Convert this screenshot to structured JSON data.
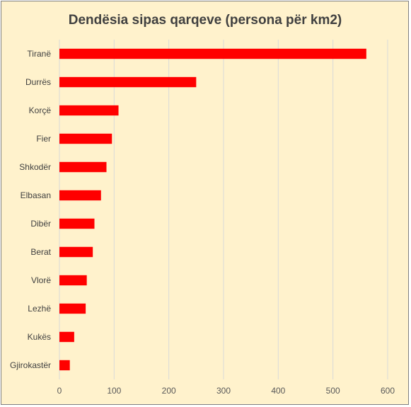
{
  "chart_data": {
    "type": "bar",
    "orientation": "horizontal",
    "title": "Dendësia sipas qarqeve (persona për km2)",
    "xlabel": "",
    "ylabel": "",
    "categories": [
      "Tiranë",
      "Durrës",
      "Korçë",
      "Fier",
      "Shkodër",
      "Elbasan",
      "Dibër",
      "Berat",
      "Vlorë",
      "Lezhë",
      "Kukës",
      "Gjirokastër"
    ],
    "values": [
      561,
      250,
      108,
      96,
      86,
      76,
      64,
      61,
      50,
      48,
      27,
      19
    ],
    "xlim": [
      0,
      600
    ],
    "ticks": [
      0,
      100,
      200,
      300,
      400,
      500,
      600
    ],
    "grid": "vertical",
    "legend": "none",
    "colors": {
      "bar": "#ff0000",
      "background": "#fff2cc",
      "gridline": "#d9d9d9",
      "text": "#404040",
      "border": "#7f7f7f"
    }
  }
}
